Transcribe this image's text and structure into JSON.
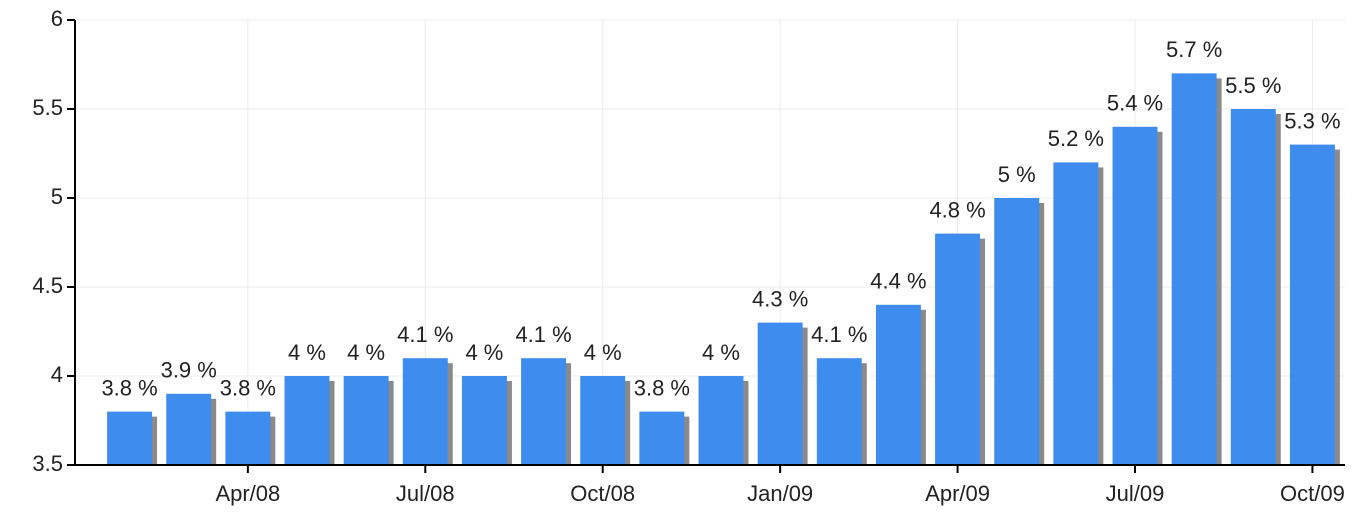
{
  "chart_data": {
    "type": "bar",
    "categories": [
      null,
      null,
      "Apr/08",
      null,
      null,
      "Jul/08",
      null,
      null,
      "Oct/08",
      null,
      null,
      "Jan/09",
      null,
      null,
      "Apr/09",
      null,
      null,
      "Jul/09",
      null,
      null,
      "Oct/09"
    ],
    "values": [
      3.8,
      3.9,
      3.8,
      4,
      4,
      4.1,
      4,
      4.1,
      4,
      3.8,
      4,
      4.3,
      4.1,
      4.4,
      4.8,
      5,
      5.2,
      5.4,
      5.7,
      5.5,
      5.3
    ],
    "value_labels": [
      "3.8 %",
      "3.9 %",
      "3.8 %",
      "4 %",
      "4 %",
      "4.1 %",
      "4 %",
      "4.1 %",
      "4 %",
      "3.8 %",
      "4 %",
      "4.3 %",
      "4.1 %",
      "4.4 %",
      "4.8 %",
      "5 %",
      "5.2 %",
      "5.4 %",
      "5.7 %",
      "5.5 %",
      "5.3 %"
    ],
    "color": "#3f8cef",
    "ylim": [
      3.5,
      6
    ],
    "yticks": [
      3.5,
      4,
      4.5,
      5,
      5.5,
      6
    ],
    "grid": true
  }
}
